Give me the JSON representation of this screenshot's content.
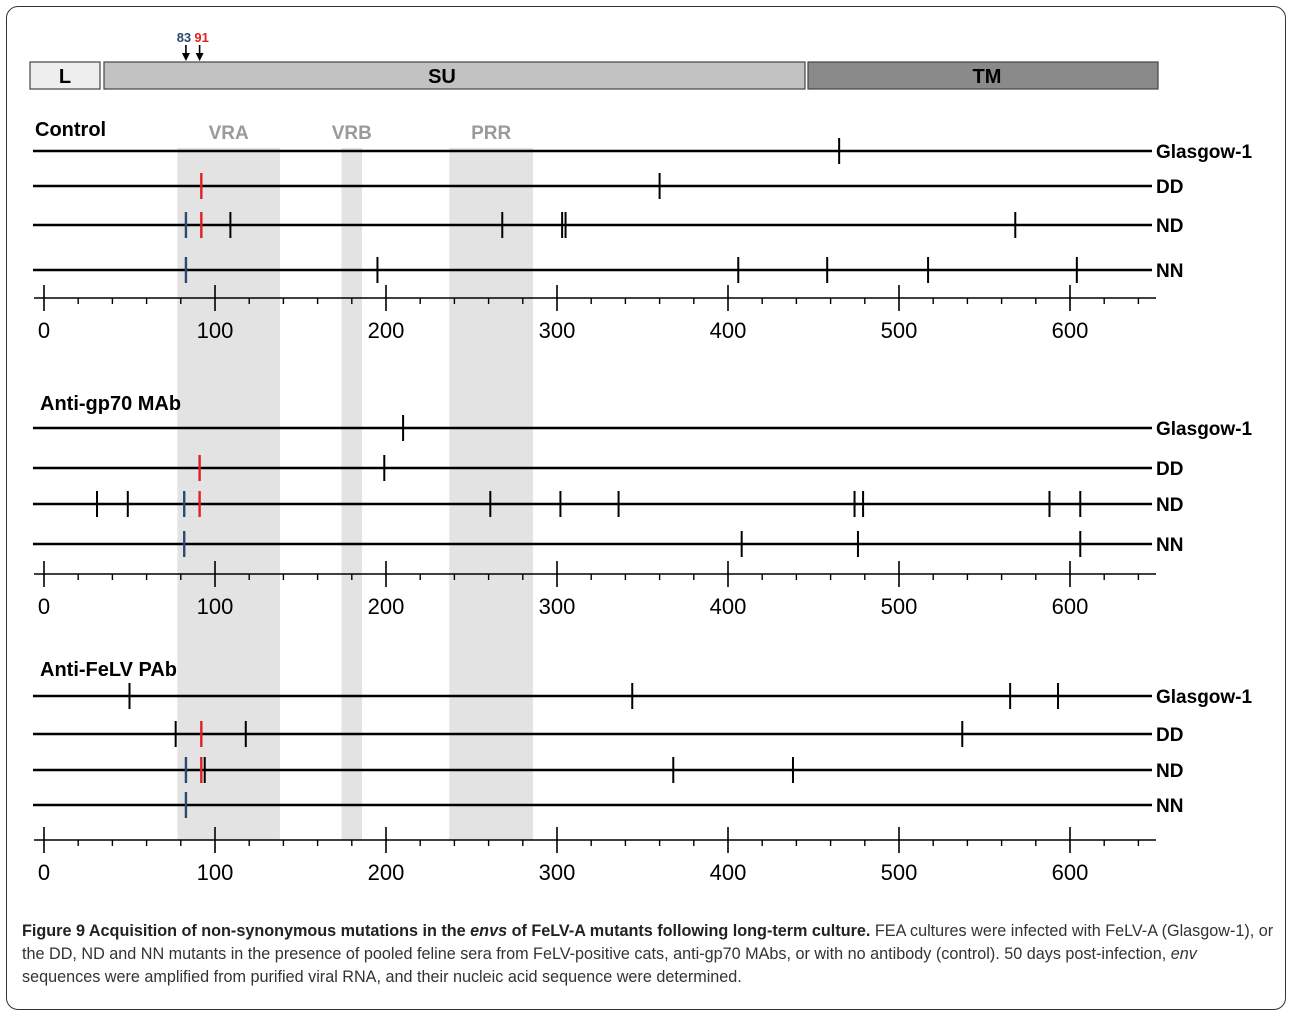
{
  "domains": {
    "L": "L",
    "SU": "SU",
    "TM": "TM",
    "colors": {
      "L": "#eeeeee",
      "SU": "#c2c2c2",
      "TM": "#8a8a8a"
    }
  },
  "site_markers": [
    {
      "label": "83",
      "pos": 83,
      "color": "#2b4a72"
    },
    {
      "label": "91",
      "pos": 91,
      "color": "#e02020"
    }
  ],
  "regions": [
    {
      "label": "VRA",
      "start": 78,
      "end": 138
    },
    {
      "label": "VRB",
      "start": 174,
      "end": 186
    },
    {
      "label": "PRR",
      "start": 237,
      "end": 286
    }
  ],
  "colors": {
    "highlight_blue": "#2b4a72",
    "highlight_red": "#e02020",
    "region_band": "#e3e3e3",
    "region_label": "#9a9a9a",
    "line": "#000000"
  },
  "axis": {
    "min": 0,
    "max": 640,
    "major_ticks": [
      0,
      100,
      200,
      300,
      400,
      500,
      600
    ],
    "minor_step": 20
  },
  "panels": [
    {
      "title": "Control",
      "tracks": [
        {
          "name": "Glasgow-1",
          "mutations": [
            465
          ],
          "blue": [],
          "red": []
        },
        {
          "name": "DD",
          "mutations": [
            360
          ],
          "blue": [],
          "red": [
            92
          ]
        },
        {
          "name": "ND",
          "mutations": [
            109,
            268,
            303,
            305,
            568
          ],
          "blue": [
            83
          ],
          "red": [
            92
          ]
        },
        {
          "name": "NN",
          "mutations": [
            195,
            406,
            458,
            517,
            604
          ],
          "blue": [
            83
          ],
          "red": []
        }
      ]
    },
    {
      "title": "Anti-gp70 MAb",
      "tracks": [
        {
          "name": "Glasgow-1",
          "mutations": [
            210
          ],
          "blue": [],
          "red": []
        },
        {
          "name": "DD",
          "mutations": [
            199
          ],
          "blue": [],
          "red": [
            91
          ]
        },
        {
          "name": "ND",
          "mutations": [
            31,
            49,
            261,
            302,
            336,
            474,
            479,
            588,
            606
          ],
          "blue": [
            82
          ],
          "red": [
            91
          ]
        },
        {
          "name": "NN",
          "mutations": [
            408,
            476,
            606
          ],
          "blue": [
            82
          ],
          "red": []
        }
      ]
    },
    {
      "title": "Anti-FeLV PAb",
      "tracks": [
        {
          "name": "Glasgow-1",
          "mutations": [
            50,
            344,
            565,
            593
          ],
          "blue": [],
          "red": []
        },
        {
          "name": "DD",
          "mutations": [
            77,
            118,
            537
          ],
          "blue": [],
          "red": [
            92
          ]
        },
        {
          "name": "ND",
          "mutations": [
            94,
            368,
            438
          ],
          "blue": [
            83
          ],
          "red": [
            92
          ]
        },
        {
          "name": "NN",
          "mutations": [],
          "blue": [
            83
          ],
          "red": []
        }
      ]
    }
  ],
  "caption": {
    "bold_prefix": "Figure 9 Acquisition of non-synonymous mutations in the ",
    "bold_italic": "envs",
    "bold_suffix": " of FeLV-A mutants following long-term culture.",
    "text_1": " FEA cultures were infected with FeLV-A (Glasgow-1), or the DD, ND and NN mutants in the presence of pooled feline sera from FeLV-positive cats, anti-gp70 MAbs, or with no antibody (control). 50 days post-infection, ",
    "text_italic": "env",
    "text_2": " sequences were amplified from purified viral RNA, and their nucleic acid sequence were determined."
  }
}
